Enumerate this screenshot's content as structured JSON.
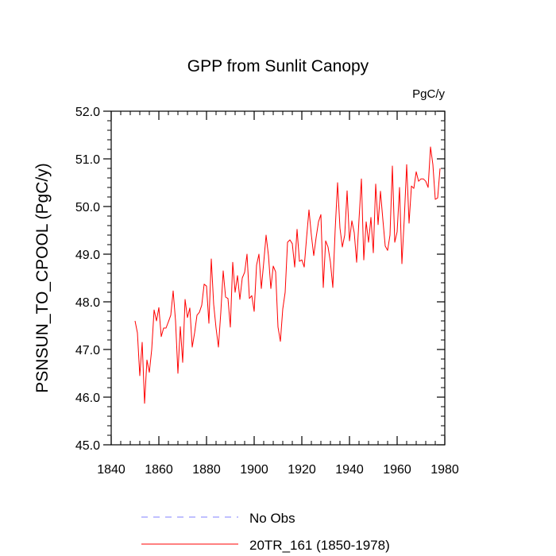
{
  "chart_data": {
    "type": "line",
    "title": "GPP from Sunlit Canopy",
    "units_label": "PgC/y",
    "ylabel": "PSNSUN_TO_CPOOL  (PgC/y)",
    "xlabel": "",
    "xlim": [
      1840,
      1980
    ],
    "ylim": [
      45.0,
      52.0
    ],
    "x_ticks": [
      1840,
      1860,
      1880,
      1900,
      1920,
      1940,
      1960,
      1980
    ],
    "x_tick_labels": [
      "1840",
      "1860",
      "1880",
      "1900",
      "1920",
      "1940",
      "1960",
      "1980"
    ],
    "y_ticks": [
      45.0,
      46.0,
      47.0,
      48.0,
      49.0,
      50.0,
      51.0,
      52.0
    ],
    "y_tick_labels": [
      "45.0",
      "46.0",
      "47.0",
      "48.0",
      "49.0",
      "50.0",
      "51.0",
      "52.0"
    ],
    "legend_position": "bottom",
    "series": [
      {
        "name": "No Obs",
        "color": "#8080ff",
        "style": "dashed",
        "x": [],
        "values": []
      },
      {
        "name": "20TR_161 (1850-1978)",
        "color": "#ff0000",
        "style": "solid",
        "x": [
          1850,
          1851,
          1852,
          1853,
          1854,
          1855,
          1856,
          1857,
          1858,
          1859,
          1860,
          1861,
          1862,
          1863,
          1864,
          1865,
          1866,
          1867,
          1868,
          1869,
          1870,
          1871,
          1872,
          1873,
          1874,
          1875,
          1876,
          1877,
          1878,
          1879,
          1880,
          1881,
          1882,
          1883,
          1884,
          1885,
          1886,
          1887,
          1888,
          1889,
          1890,
          1891,
          1892,
          1893,
          1894,
          1895,
          1896,
          1897,
          1898,
          1899,
          1900,
          1901,
          1902,
          1903,
          1904,
          1905,
          1906,
          1907,
          1908,
          1909,
          1910,
          1911,
          1912,
          1913,
          1914,
          1915,
          1916,
          1917,
          1918,
          1919,
          1920,
          1921,
          1922,
          1923,
          1924,
          1925,
          1926,
          1927,
          1928,
          1929,
          1930,
          1931,
          1932,
          1933,
          1934,
          1935,
          1936,
          1937,
          1938,
          1939,
          1940,
          1941,
          1942,
          1943,
          1944,
          1945,
          1946,
          1947,
          1948,
          1949,
          1950,
          1951,
          1952,
          1953,
          1954,
          1955,
          1956,
          1957,
          1958,
          1959,
          1960,
          1961,
          1962,
          1963,
          1964,
          1965,
          1966,
          1967,
          1968,
          1969,
          1970,
          1971,
          1972,
          1973,
          1974,
          1975,
          1976,
          1977,
          1978
        ],
        "values": [
          47.6,
          47.35,
          46.45,
          47.15,
          45.87,
          46.78,
          46.52,
          47.0,
          47.83,
          47.6,
          47.88,
          47.27,
          47.45,
          47.45,
          47.58,
          47.72,
          48.23,
          47.6,
          46.5,
          47.48,
          46.73,
          48.05,
          47.67,
          47.87,
          47.05,
          47.35,
          47.72,
          47.78,
          47.93,
          48.37,
          48.33,
          47.55,
          48.9,
          47.95,
          47.45,
          47.05,
          47.78,
          48.65,
          48.1,
          48.07,
          47.47,
          48.83,
          48.2,
          48.55,
          48.05,
          48.5,
          48.62,
          49.0,
          48.07,
          48.13,
          47.8,
          48.77,
          49.0,
          48.28,
          48.82,
          49.4,
          48.97,
          48.28,
          48.75,
          48.63,
          47.47,
          47.17,
          47.85,
          48.2,
          49.25,
          49.3,
          49.22,
          48.73,
          49.52,
          48.85,
          48.88,
          48.73,
          49.35,
          49.93,
          49.4,
          48.97,
          49.35,
          49.68,
          49.83,
          48.3,
          49.28,
          49.15,
          48.83,
          48.3,
          49.52,
          50.5,
          49.55,
          49.15,
          49.4,
          50.33,
          49.28,
          49.7,
          49.45,
          48.83,
          49.73,
          50.58,
          48.88,
          49.68,
          49.25,
          49.77,
          49.03,
          50.47,
          49.62,
          50.32,
          49.73,
          49.17,
          49.08,
          49.4,
          50.85,
          49.25,
          49.47,
          50.4,
          48.8,
          49.75,
          50.88,
          49.65,
          50.43,
          50.38,
          50.73,
          50.53,
          50.58,
          50.58,
          50.53,
          50.4,
          51.25,
          50.88,
          50.15,
          50.18,
          50.8
        ]
      }
    ]
  }
}
